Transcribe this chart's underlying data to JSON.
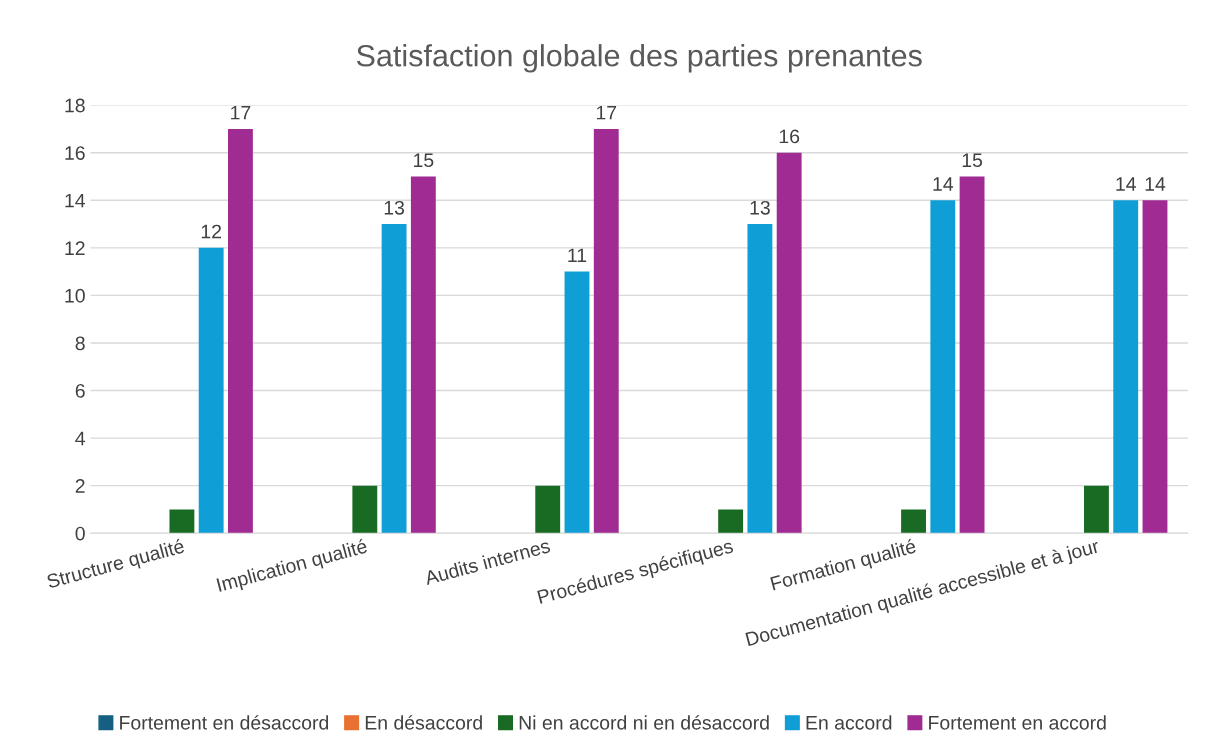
{
  "chart_data": {
    "type": "bar",
    "title": "Satisfaction globale des parties prenantes",
    "categories": [
      "Structure qualité",
      "Implication qualité",
      "Audits internes",
      "Procédures spécifiques",
      "Formation qualité",
      "Documentation qualité accessible et à jour"
    ],
    "series": [
      {
        "name": "Fortement en désaccord",
        "color": "#156082",
        "values": [
          0,
          0,
          0,
          0,
          0,
          0
        ]
      },
      {
        "name": "En désaccord",
        "color": "#e97132",
        "values": [
          0,
          0,
          0,
          0,
          0,
          0
        ]
      },
      {
        "name": "Ni en accord ni en désaccord",
        "color": "#196b24",
        "values": [
          1,
          2,
          2,
          1,
          1,
          2
        ]
      },
      {
        "name": "En accord",
        "color": "#0f9ed5",
        "values": [
          12,
          13,
          11,
          13,
          14,
          14
        ],
        "value_labels": [
          "12",
          "13",
          "11",
          "13",
          "14",
          "14"
        ]
      },
      {
        "name": "Fortement en accord",
        "color": "#a02b93",
        "values": [
          17,
          15,
          17,
          16,
          15,
          14
        ],
        "value_labels": [
          "17",
          "15",
          "17",
          "16",
          "15",
          "14"
        ]
      }
    ],
    "ylim": [
      0,
      18
    ],
    "yticks": [
      0,
      2,
      4,
      6,
      8,
      10,
      12,
      14,
      16,
      18
    ],
    "grid": "y",
    "legend": "bottom"
  }
}
